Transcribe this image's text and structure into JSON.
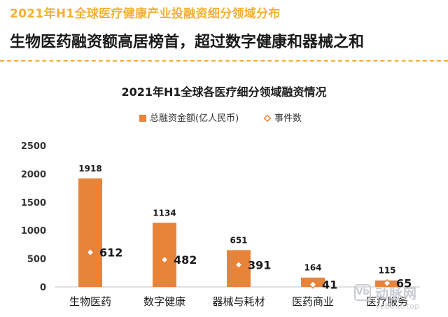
{
  "header": {
    "subtitle": "2021年H1全球医疗健康产业投融资细分领域分布",
    "title": "生物医药融资额高居榜首，超过数字健康和器械之和"
  },
  "colors": {
    "accent": "#f2b134",
    "bar": "#e8833a",
    "marker": "#e8833a"
  },
  "chart_data": {
    "type": "bar",
    "title": "2021年H1全球各医疗细分领域融资情况",
    "categories": [
      "生物医药",
      "数字健康",
      "器械与耗材",
      "医药商业",
      "医疗服务"
    ],
    "series": [
      {
        "name": "总融资金额(亿人民币)",
        "type": "bar",
        "values": [
          1918,
          1134,
          651,
          164,
          115
        ]
      },
      {
        "name": "事件数",
        "type": "scatter",
        "marker": "diamond",
        "values": [
          612,
          482,
          391,
          41,
          65
        ]
      }
    ],
    "ylim": [
      0,
      2500
    ],
    "yticks": [
      0,
      500,
      1000,
      1500,
      2000,
      2500
    ],
    "legend": "top",
    "grid": false
  },
  "watermark": {
    "logo_icon": "vb-logo-icon",
    "logo_text": "Vb",
    "name": "动脉网",
    "url": "vcbeat.top"
  }
}
